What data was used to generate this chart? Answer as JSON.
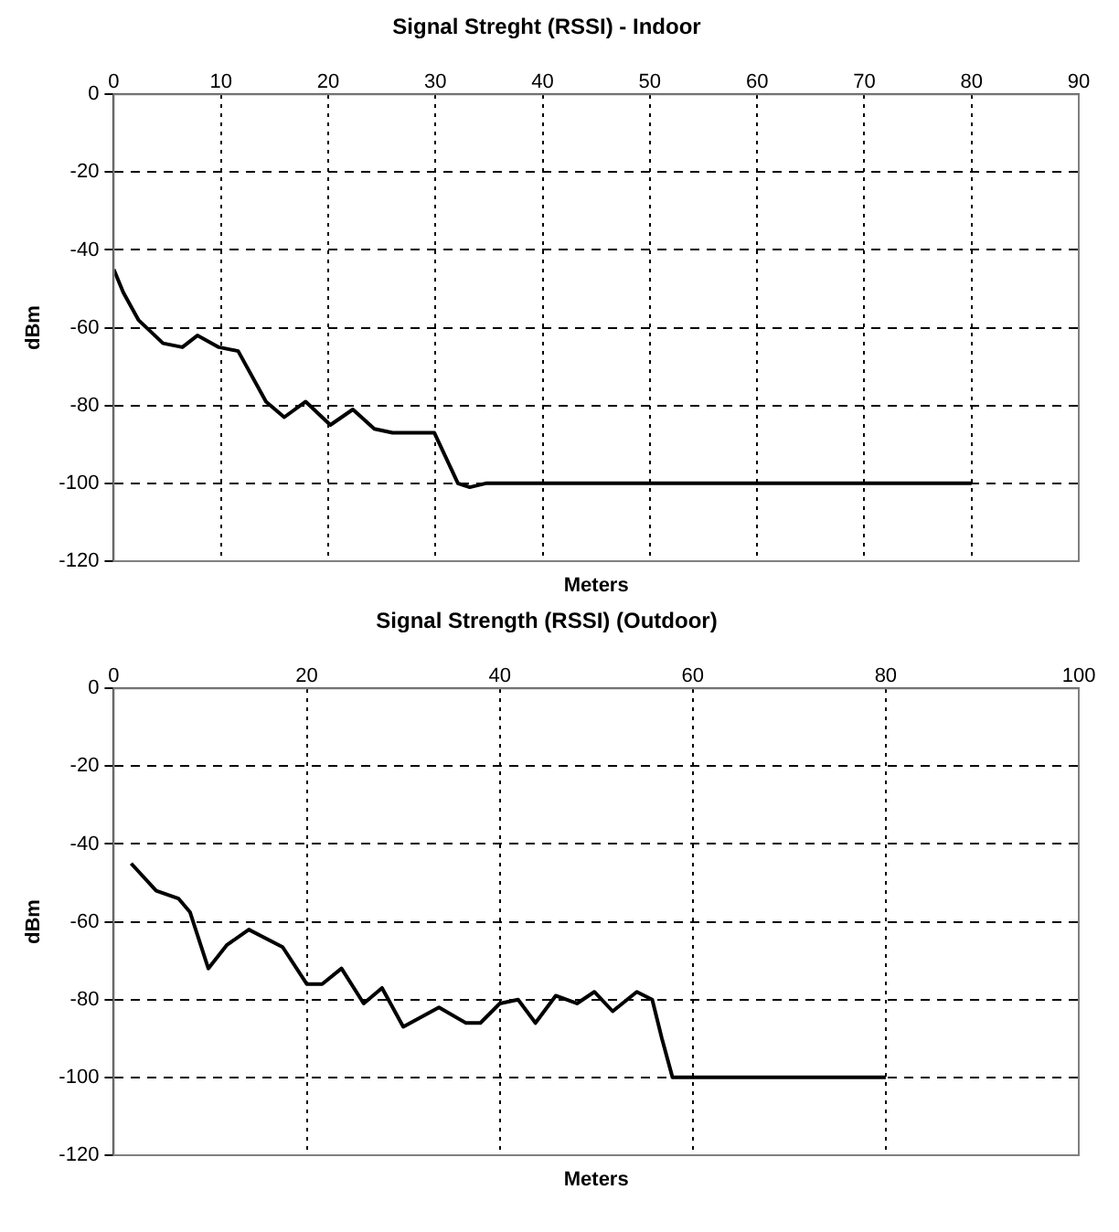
{
  "chart_data": [
    {
      "type": "line",
      "title": "Signal Streght (RSSI) - Indoor",
      "xlabel": "Meters",
      "ylabel": "dBm",
      "xlim": [
        0,
        90
      ],
      "xticks": [
        0,
        10,
        20,
        30,
        40,
        50,
        60,
        70,
        80,
        90
      ],
      "ylim": [
        -120,
        0
      ],
      "yticks": [
        -120,
        -100,
        -80,
        -60,
        -40,
        -20,
        0
      ],
      "grid": true,
      "legend": false,
      "marker": "none",
      "line_style": "solid",
      "series": [
        {
          "color": "#000000",
          "x": [
            0,
            0.9,
            2.3,
            4.6,
            6.4,
            7.8,
            9.8,
            11.6,
            14.2,
            15.9,
            17.9,
            20.2,
            22.3,
            24.3,
            26,
            28.6,
            29.9,
            32.1,
            33.2,
            34.7,
            80
          ],
          "values": [
            -45,
            -51,
            -58,
            -64,
            -65,
            -62,
            -65,
            -66,
            -79,
            -83,
            -79,
            -85,
            -81,
            -86,
            -87,
            -87,
            -87,
            -100,
            -101,
            -100,
            -100
          ]
        }
      ]
    },
    {
      "type": "line",
      "title": "Signal Strength (RSSI) (Outdoor)",
      "xlabel": "Meters",
      "ylabel": "dBm",
      "xlim": [
        0,
        100
      ],
      "xticks": [
        0,
        20,
        40,
        60,
        80,
        100
      ],
      "ylim": [
        -120,
        0
      ],
      "yticks": [
        -120,
        -100,
        -80,
        -60,
        -40,
        -20,
        0
      ],
      "grid": true,
      "legend": false,
      "marker": "none",
      "line_style": "solid",
      "series": [
        {
          "color": "#000000",
          "x": [
            1.8,
            4.4,
            6.7,
            7.9,
            9.8,
            11.7,
            14,
            17.5,
            20,
            21.6,
            23.6,
            25.9,
            27.8,
            30,
            33.7,
            36.5,
            38,
            40,
            41.9,
            43.7,
            45.8,
            48,
            49.8,
            51.7,
            54.2,
            55.8,
            56.8,
            57.9,
            59,
            80
          ],
          "values": [
            -45,
            -52,
            -54,
            -57.5,
            -72,
            -66,
            -62,
            -66.5,
            -76,
            -76,
            -72,
            -81,
            -77,
            -87,
            -82,
            -86,
            -86,
            -81,
            -80,
            -86,
            -79,
            -81,
            -78,
            -83,
            -78,
            -80,
            -90,
            -100,
            -100,
            -100
          ]
        }
      ]
    }
  ]
}
